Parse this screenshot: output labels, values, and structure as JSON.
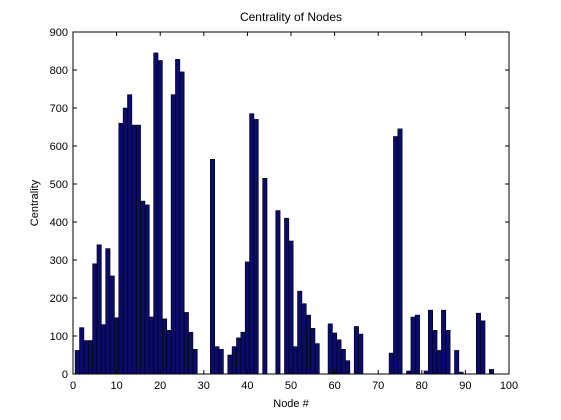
{
  "chart_data": {
    "type": "bar",
    "title": "Centrality of Nodes",
    "xlabel": "Node #",
    "ylabel": "Centrality",
    "xlim": [
      0,
      100
    ],
    "ylim": [
      0,
      900
    ],
    "xticks": [
      "0",
      "10",
      "20",
      "30",
      "40",
      "50",
      "60",
      "70",
      "80",
      "90",
      "100"
    ],
    "yticks": [
      "0",
      "100",
      "200",
      "300",
      "400",
      "500",
      "600",
      "700",
      "800",
      "900"
    ],
    "grid": false,
    "legend": "none",
    "colors": {
      "bar_fill": "#0b0b6e",
      "bar_edge": "#000000",
      "axis": "#000000",
      "background": "#ffffff"
    },
    "nodes": [
      1,
      2,
      3,
      4,
      5,
      6,
      7,
      8,
      9,
      10,
      11,
      12,
      13,
      14,
      15,
      16,
      17,
      18,
      19,
      20,
      21,
      22,
      23,
      24,
      25,
      26,
      27,
      28,
      29,
      30,
      31,
      32,
      33,
      34,
      35,
      36,
      37,
      38,
      39,
      40,
      41,
      42,
      43,
      44,
      45,
      46,
      47,
      48,
      49,
      50,
      51,
      52,
      53,
      54,
      55,
      56,
      57,
      58,
      59,
      60,
      61,
      62,
      63,
      64,
      65,
      66,
      67,
      68,
      69,
      70,
      71,
      72,
      73,
      74,
      75,
      76,
      77,
      78,
      79,
      80,
      81,
      82,
      83,
      84,
      85,
      86,
      87,
      88,
      89,
      90,
      91,
      92,
      93,
      94,
      95,
      96,
      97,
      98,
      99
    ],
    "values": [
      62,
      122,
      88,
      88,
      290,
      340,
      130,
      330,
      258,
      148,
      660,
      700,
      735,
      655,
      655,
      455,
      445,
      150,
      845,
      825,
      145,
      115,
      735,
      828,
      795,
      162,
      110,
      65,
      0,
      0,
      0,
      565,
      72,
      65,
      0,
      50,
      72,
      95,
      110,
      295,
      685,
      670,
      0,
      515,
      0,
      0,
      430,
      0,
      410,
      350,
      72,
      218,
      185,
      155,
      120,
      80,
      0,
      0,
      132,
      108,
      90,
      65,
      35,
      0,
      125,
      105,
      0,
      0,
      0,
      0,
      0,
      0,
      55,
      625,
      645,
      0,
      8,
      150,
      155,
      0,
      8,
      168,
      115,
      62,
      168,
      115,
      0,
      62,
      5,
      0,
      0,
      0,
      160,
      140,
      0,
      12,
      0,
      0,
      0
    ]
  }
}
